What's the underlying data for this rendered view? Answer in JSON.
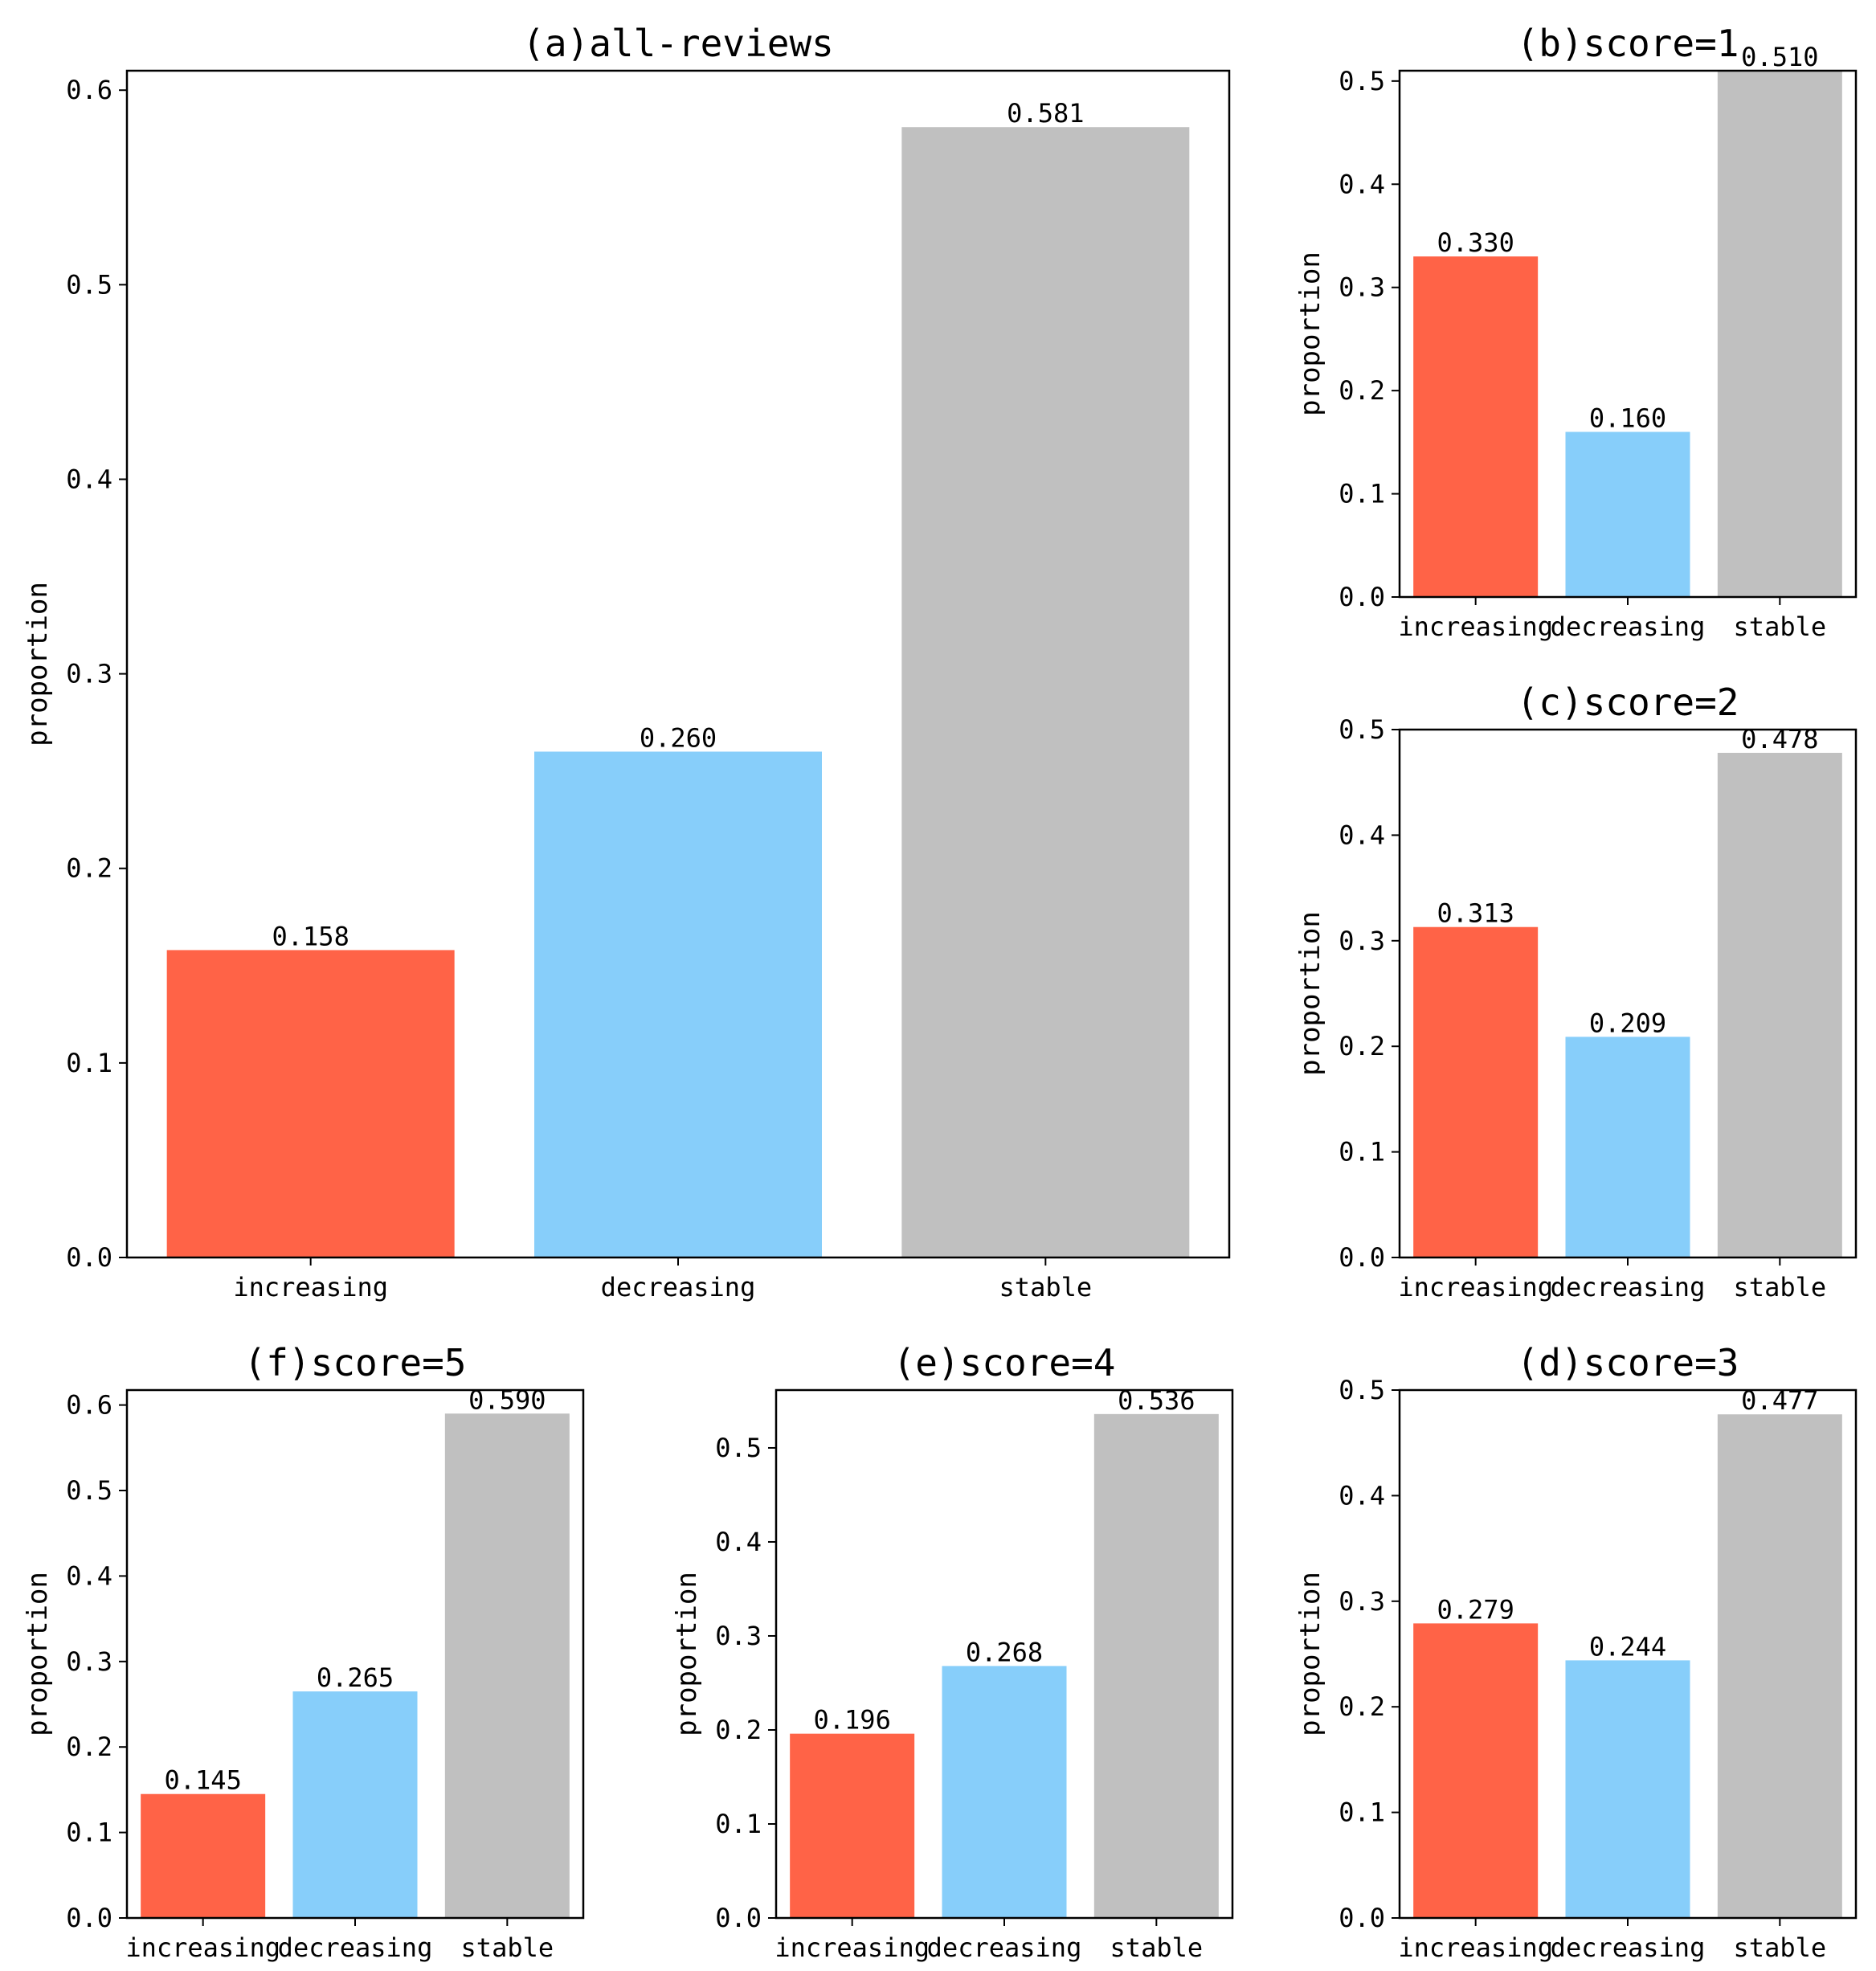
{
  "colors": {
    "increasing": "#FF6347",
    "decreasing": "#87CEFA",
    "stable": "#C0C0C0"
  },
  "chart_data": [
    {
      "id": "a",
      "type": "bar",
      "title": "(a)all-reviews",
      "categories": [
        "increasing",
        "decreasing",
        "stable"
      ],
      "values": [
        0.158,
        0.26,
        0.581
      ],
      "value_labels": [
        "0.158",
        "0.260",
        "0.581"
      ],
      "xlabel": "",
      "ylabel": "proportion",
      "ylim": [
        0,
        0.61
      ],
      "yticks": [
        0.0,
        0.1,
        0.2,
        0.3,
        0.4,
        0.5,
        0.6
      ],
      "ytick_labels": [
        "0.0",
        "0.1",
        "0.2",
        "0.3",
        "0.4",
        "0.5",
        "0.6"
      ]
    },
    {
      "id": "b",
      "type": "bar",
      "title": "(b)score=1",
      "categories": [
        "increasing",
        "decreasing",
        "stable"
      ],
      "values": [
        0.33,
        0.16,
        0.51
      ],
      "value_labels": [
        "0.330",
        "0.160",
        "0.510"
      ],
      "xlabel": "",
      "ylabel": "proportion",
      "ylim": [
        0,
        0.51
      ],
      "yticks": [
        0.0,
        0.1,
        0.2,
        0.3,
        0.4,
        0.5
      ],
      "ytick_labels": [
        "0.0",
        "0.1",
        "0.2",
        "0.3",
        "0.4",
        "0.5"
      ]
    },
    {
      "id": "c",
      "type": "bar",
      "title": "(c)score=2",
      "categories": [
        "increasing",
        "decreasing",
        "stable"
      ],
      "values": [
        0.313,
        0.209,
        0.478
      ],
      "value_labels": [
        "0.313",
        "0.209",
        "0.478"
      ],
      "xlabel": "",
      "ylabel": "proportion",
      "ylim": [
        0,
        0.5
      ],
      "yticks": [
        0.0,
        0.1,
        0.2,
        0.3,
        0.4,
        0.5
      ],
      "ytick_labels": [
        "0.0",
        "0.1",
        "0.2",
        "0.3",
        "0.4",
        "0.5"
      ]
    },
    {
      "id": "d",
      "type": "bar",
      "title": "(d)score=3",
      "categories": [
        "increasing",
        "decreasing",
        "stable"
      ],
      "values": [
        0.279,
        0.244,
        0.477
      ],
      "value_labels": [
        "0.279",
        "0.244",
        "0.477"
      ],
      "xlabel": "",
      "ylabel": "proportion",
      "ylim": [
        0,
        0.5
      ],
      "yticks": [
        0.0,
        0.1,
        0.2,
        0.3,
        0.4,
        0.5
      ],
      "ytick_labels": [
        "0.0",
        "0.1",
        "0.2",
        "0.3",
        "0.4",
        "0.5"
      ]
    },
    {
      "id": "e",
      "type": "bar",
      "title": "(e)score=4",
      "categories": [
        "increasing",
        "decreasing",
        "stable"
      ],
      "values": [
        0.196,
        0.268,
        0.536
      ],
      "value_labels": [
        "0.196",
        "0.268",
        "0.536"
      ],
      "xlabel": "",
      "ylabel": "proportion",
      "ylim": [
        0,
        0.5615
      ],
      "yticks": [
        0.0,
        0.1,
        0.2,
        0.3,
        0.4,
        0.5
      ],
      "ytick_labels": [
        "0.0",
        "0.1",
        "0.2",
        "0.3",
        "0.4",
        "0.5"
      ]
    },
    {
      "id": "f",
      "type": "bar",
      "title": "(f)score=5",
      "categories": [
        "increasing",
        "decreasing",
        "stable"
      ],
      "values": [
        0.145,
        0.265,
        0.59
      ],
      "value_labels": [
        "0.145",
        "0.265",
        "0.590"
      ],
      "xlabel": "",
      "ylabel": "proportion",
      "ylim": [
        0,
        0.6175
      ],
      "yticks": [
        0.0,
        0.1,
        0.2,
        0.3,
        0.4,
        0.5,
        0.6
      ],
      "ytick_labels": [
        "0.0",
        "0.1",
        "0.2",
        "0.3",
        "0.4",
        "0.5",
        "0.6"
      ]
    }
  ]
}
